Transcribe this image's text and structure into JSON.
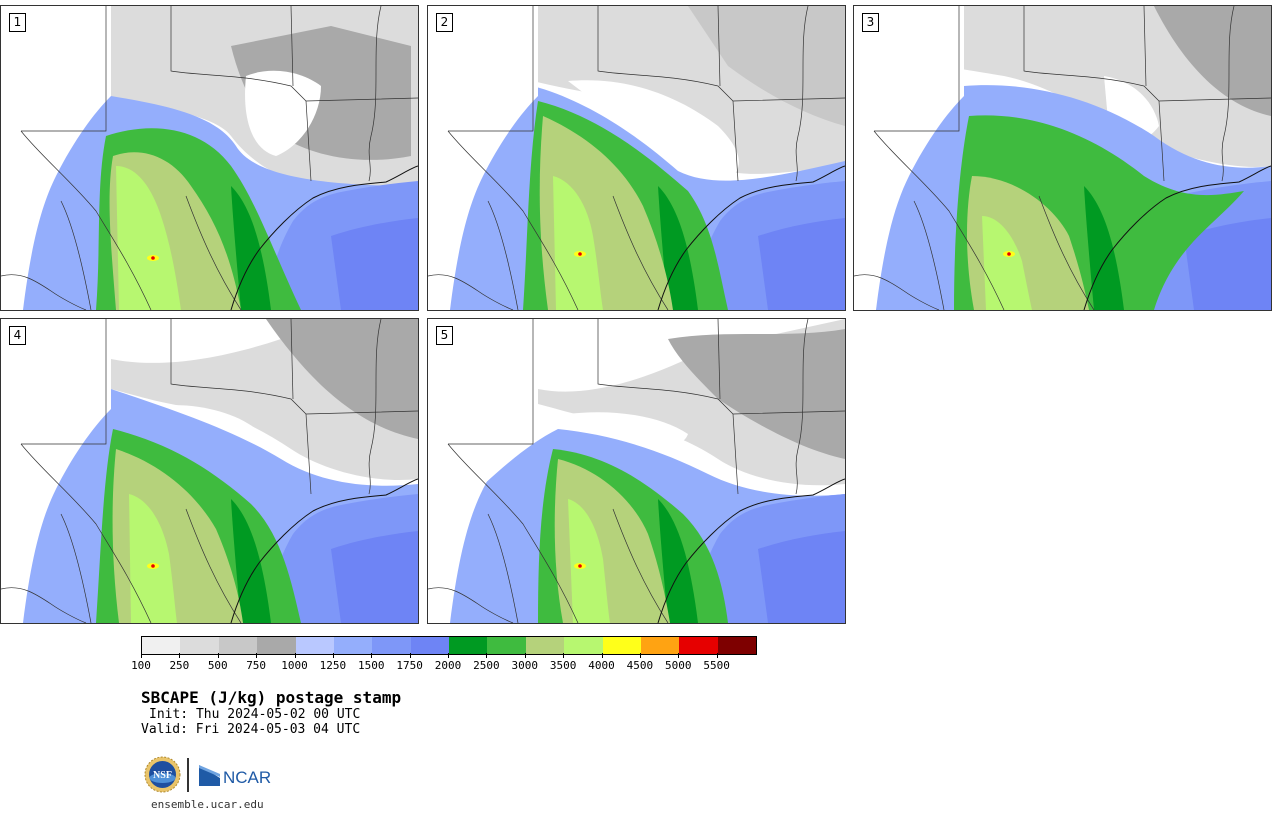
{
  "panels": [
    {
      "label": "1",
      "variant": 0
    },
    {
      "label": "2",
      "variant": 1
    },
    {
      "label": "3",
      "variant": 2
    },
    {
      "label": "4",
      "variant": 3
    },
    {
      "label": "5",
      "variant": 4
    }
  ],
  "colorbar": {
    "colors": [
      "#f0f0f0",
      "#dcdcdc",
      "#c8c8c8",
      "#a9a9a9",
      "#b9c8ff",
      "#94aefc",
      "#7e97f8",
      "#6e84f5",
      "#009a22",
      "#3fbb3f",
      "#b5d27b",
      "#b7f770",
      "#ffff1a",
      "#ffa312",
      "#e60000",
      "#7e0000"
    ],
    "tick_labels": [
      "100",
      "250",
      "500",
      "750",
      "1000",
      "1250",
      "1500",
      "1750",
      "2000",
      "2500",
      "3000",
      "3500",
      "4000",
      "4500",
      "5000",
      "5500"
    ]
  },
  "title": "SBCAPE (J/kg) postage stamp",
  "init": "Init: Thu 2024-05-02 00 UTC",
  "valid": "Valid: Fri 2024-05-03 04 UTC",
  "logos": {
    "nsf": "NSF",
    "ncar": "NCAR"
  },
  "website": "ensemble.ucar.edu"
}
